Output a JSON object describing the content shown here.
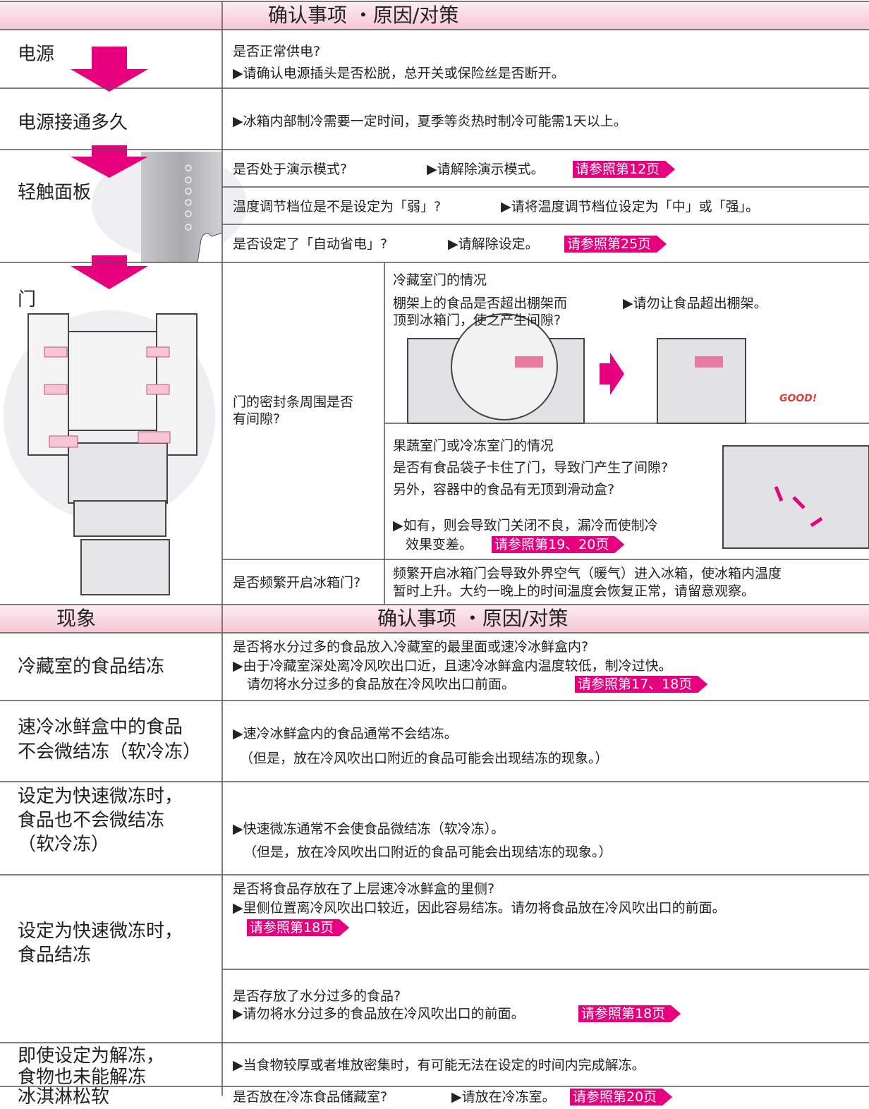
{
  "header_1": {
    "title": "确认事项 ・原因/对策"
  },
  "power": {
    "label": "电源",
    "check": "是否正常供电?",
    "action": "▶请确认电源插头是否松脱，总开关或保险丝是否断开。"
  },
  "power_time": {
    "label": "电源接通多久",
    "action": "▶冰箱内部制冷需要一定时间，夏季等炎热时制冷可能需1天以上。"
  },
  "panel": {
    "label": "轻触面板",
    "items": [
      {
        "check": "是否处于演示模式?",
        "action": "▶请解除演示模式。",
        "ref": "请参照第12页"
      },
      {
        "check": "温度调节档位是不是设定为「弱」?",
        "action": "▶请将温度调节档位设定为「中」或「强」。"
      },
      {
        "check": "是否设定了「自动省电」?",
        "action": "▶请解除设定。",
        "ref": "请参照第25页"
      }
    ]
  },
  "door": {
    "label": "门",
    "seal_check": [
      "门的密封条周围是否",
      "有间隙?"
    ],
    "fridge_case": {
      "title": "冷藏室门的情况",
      "check": [
        "棚架上的食品是否超出棚架而",
        "顶到冰箱门，使之产生间隙?"
      ],
      "action": "▶请勿让食品超出棚架。",
      "image_label": "GOOD!"
    },
    "freezer_case": {
      "title": "果蔬室门或冷冻室门的情况",
      "check": [
        "是否有食品袋子卡住了门，导致门产生了间隙?",
        "另外，容器中的食品有无顶到滑动盒?"
      ],
      "action": [
        "▶如有，则会导致门关闭不良，漏冷而使制冷",
        "效果变差。"
      ],
      "ref": "请参照第19、20页"
    },
    "frequent": {
      "check": "是否频繁开启冰箱门?",
      "explanation": [
        "频繁开启冰箱门会导致外界空气（暖气）进入冰箱，使冰箱内温度",
        "暂时上升。大约一晚上的时间温度会恢复正常，请留意观察。"
      ]
    }
  },
  "header_2": {
    "symptom": "现象",
    "title": "确认事项 ・原因/对策"
  },
  "symptoms": [
    {
      "label": [
        "冷藏室的食品结冻"
      ],
      "check": "是否将水分过多的食品放入冷藏室的最里面或速冷冰鲜盒内?",
      "action": [
        "▶由于冷藏室深处离冷风吹出口近，且速冷冰鲜盒内温度较低，制冷过快。",
        "请勿将水分过多的食品放在冷风吹出口前面。"
      ],
      "ref": "请参照第17、18页"
    },
    {
      "label": [
        "速冷冰鲜盒中的食品",
        "不会微结冻（软冷冻）"
      ],
      "action": [
        "▶速冷冰鲜盒内的食品通常不会结冻。",
        "（但是，放在冷风吹出口附近的食品可能会出现结冻的现象。）"
      ]
    },
    {
      "label": [
        "设定为快速微冻时，",
        "食品也不会微结冻",
        "（软冷冻）"
      ],
      "action": [
        "▶快速微冻通常不会使食品微结冻（软冷冻）。",
        "（但是，放在冷风吹出口附近的食品可能会出现结冻的现象。）"
      ]
    },
    {
      "label": [
        "设定为快速微冻时，",
        "食品结冻"
      ],
      "items": [
        {
          "check": "是否将食品存放在了上层速冷冰鲜盒的里侧?",
          "action": "▶里侧位置离冷风吹出口较近，因此容易结冻。请勿将食品放在冷风吹出口的前面。",
          "ref": "请参照第18页"
        },
        {
          "check": "是否存放了水分过多的食品?",
          "action": "▶请勿将水分过多的食品放在冷风吹出口的前面。",
          "ref": "请参照第18页"
        }
      ]
    },
    {
      "label": [
        "即使设定为解冻，",
        "食物也未能解冻"
      ],
      "action": "▶当食物较厚或者堆放密集时，有可能无法在设定的时间内完成解冻。"
    },
    {
      "label": [
        "冰淇淋松软"
      ],
      "check": "是否放在冷冻食品储藏室?",
      "action": "▶请放在冷冻室。",
      "ref": "请参照第20页"
    }
  ]
}
